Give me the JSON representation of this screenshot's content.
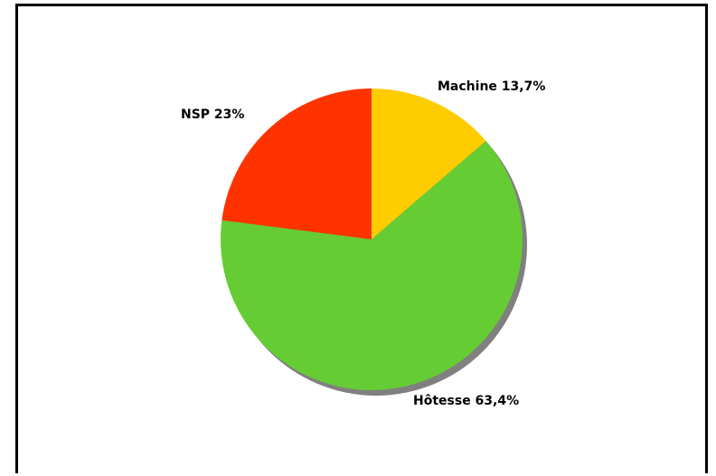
{
  "chart_data": {
    "type": "pie",
    "title": "",
    "slices": [
      {
        "label": "Machine",
        "value": 13.7,
        "value_label": "13,7%",
        "color": "#FFCC00"
      },
      {
        "label": "Hôtesse",
        "value": 63.4,
        "value_label": "63,4%",
        "color": "#66CC33"
      },
      {
        "label": "NSP",
        "value": 23,
        "value_label": "23%",
        "color": "#FF3300"
      }
    ],
    "start_angle": "12 o'clock",
    "direction": "clockwise",
    "shadow": true,
    "shadow_color": "#808080"
  }
}
